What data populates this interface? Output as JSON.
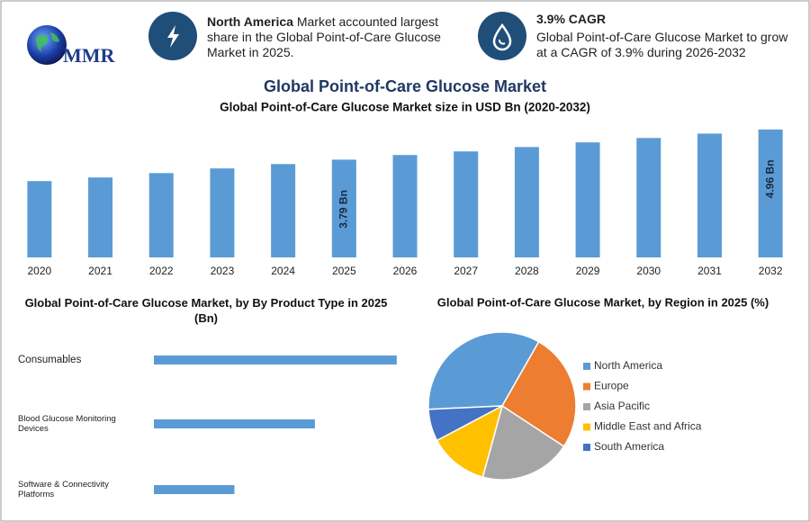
{
  "header": {
    "logo": "MMR",
    "callouts": [
      {
        "highlight": "North America",
        "text": "Market accounted largest share in the Global Point-of-Care Glucose Market in 2025."
      },
      {
        "title": "3.9% CAGR",
        "text": "Global Point-of-Care Glucose Market to grow at a CAGR of 3.9% during 2026-2032"
      }
    ]
  },
  "title": "Global Point-of-Care Glucose Market",
  "chart_data": [
    {
      "type": "bar",
      "title": "Global Point-of-Care Glucose Market size in USD Bn (2020-2032)",
      "categories": [
        "2020",
        "2021",
        "2022",
        "2023",
        "2024",
        "2025",
        "2026",
        "2027",
        "2028",
        "2029",
        "2030",
        "2031",
        "2032"
      ],
      "values": [
        2.96,
        3.1,
        3.27,
        3.45,
        3.62,
        3.79,
        3.97,
        4.11,
        4.28,
        4.46,
        4.63,
        4.8,
        4.96
      ],
      "value_labels": [
        null,
        null,
        null,
        null,
        null,
        "3.79 Bn",
        null,
        null,
        null,
        null,
        null,
        null,
        "4.96 Bn"
      ],
      "color": "#5b9bd5",
      "ylim": [
        0,
        5.2
      ]
    },
    {
      "type": "bar",
      "orientation": "horizontal",
      "title": "Global Point-of-Care Glucose Market, by By Product Type in 2025 (Bn)",
      "categories": [
        "Consumables",
        "Blood Glucose Monitoring Devices",
        "Software & Connectivity Platforms"
      ],
      "values": [
        1.9,
        1.26,
        0.63
      ],
      "color": "#5b9bd5",
      "xlim": [
        0,
        2
      ]
    },
    {
      "type": "pie",
      "title": "Global Point-of-Care Glucose Market, by Region in 2025 (%)",
      "categories": [
        "North America",
        "Europe",
        "Asia Pacific",
        "Middle East and Africa",
        "South America"
      ],
      "values": [
        34,
        26,
        20,
        13,
        7
      ],
      "colors": [
        "#5b9bd5",
        "#ed7d31",
        "#a5a5a5",
        "#ffc000",
        "#4472c4"
      ],
      "legend": "right"
    }
  ]
}
